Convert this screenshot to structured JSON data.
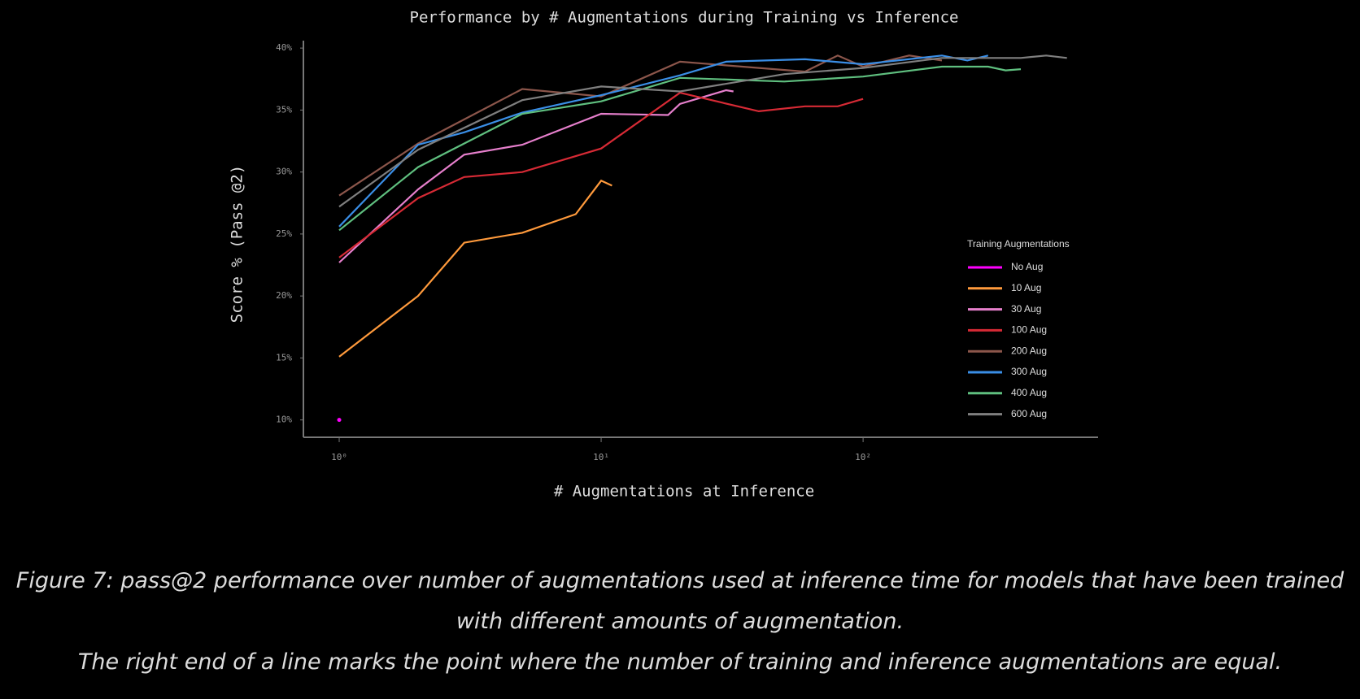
{
  "chart_data": {
    "type": "line",
    "title": "Performance by # Augmentations during Training vs Inference",
    "xlabel": "# Augmentations at Inference",
    "ylabel": "Score % (Pass @2)",
    "xscale": "log",
    "xlim": [
      0.73,
      789
    ],
    "ylim": [
      8.6,
      40.6
    ],
    "xticks": [
      {
        "value": 1,
        "label": "10⁰"
      },
      {
        "value": 10,
        "label": "10¹"
      },
      {
        "value": 100,
        "label": "10²"
      }
    ],
    "yticks": [
      {
        "value": 10,
        "label": "10%"
      },
      {
        "value": 15,
        "label": "15%"
      },
      {
        "value": 20,
        "label": "20%"
      },
      {
        "value": 25,
        "label": "25%"
      },
      {
        "value": 30,
        "label": "30%"
      },
      {
        "value": 35,
        "label": "35%"
      },
      {
        "value": 40,
        "label": "40%"
      }
    ],
    "legend_title": "Training Augmentations",
    "legend": "center right",
    "series": [
      {
        "name": "No Aug",
        "color": "#ff00ff",
        "x": [
          1
        ],
        "values": [
          10.0
        ]
      },
      {
        "name": "10 Aug",
        "color": "#ff9a3c",
        "x": [
          1,
          2,
          3,
          5,
          8,
          10,
          11
        ],
        "values": [
          15.1,
          20.0,
          24.3,
          25.1,
          26.6,
          29.3,
          28.9
        ]
      },
      {
        "name": "30 Aug",
        "color": "#e67fcc",
        "x": [
          1,
          2,
          3,
          5,
          10,
          18,
          20,
          30,
          32
        ],
        "values": [
          22.7,
          28.6,
          31.4,
          32.2,
          34.7,
          34.6,
          35.5,
          36.6,
          36.5
        ]
      },
      {
        "name": "100 Aug",
        "color": "#d62a35",
        "x": [
          1,
          2,
          3,
          5,
          10,
          20,
          40,
          60,
          80,
          100
        ],
        "values": [
          23.1,
          27.9,
          29.6,
          30.0,
          31.9,
          36.4,
          34.9,
          35.3,
          35.3,
          35.9
        ]
      },
      {
        "name": "200 Aug",
        "color": "#8c564b",
        "x": [
          1,
          2,
          5,
          10,
          20,
          60,
          80,
          100,
          150,
          200
        ],
        "values": [
          28.1,
          32.3,
          36.7,
          36.1,
          38.9,
          38.1,
          39.4,
          38.5,
          39.4,
          39.0
        ]
      },
      {
        "name": "300 Aug",
        "color": "#3a8ee6",
        "x": [
          1,
          2,
          3,
          5,
          10,
          20,
          30,
          60,
          100,
          200,
          250,
          300
        ],
        "values": [
          25.6,
          32.2,
          33.2,
          34.8,
          36.2,
          37.8,
          38.9,
          39.1,
          38.7,
          39.4,
          39.0,
          39.4
        ]
      },
      {
        "name": "400 Aug",
        "color": "#5fbf7f",
        "x": [
          1,
          2,
          5,
          10,
          20,
          50,
          100,
          200,
          300,
          350,
          400
        ],
        "values": [
          25.3,
          30.4,
          34.7,
          35.7,
          37.6,
          37.3,
          37.7,
          38.5,
          38.5,
          38.2,
          38.3
        ]
      },
      {
        "name": "600 Aug",
        "color": "#7f7f7f",
        "x": [
          1,
          2,
          5,
          10,
          20,
          50,
          100,
          200,
          300,
          400,
          500,
          600
        ],
        "values": [
          27.2,
          31.8,
          35.8,
          36.9,
          36.5,
          37.9,
          38.4,
          39.2,
          39.2,
          39.2,
          39.4,
          39.2
        ]
      }
    ]
  },
  "caption": [
    "Figure 7: pass@2 performance over number of augmentations used at inference time for models that have been trained with different amounts of augmentation.",
    "The right end of a line marks the point where the number of training and inference augmentations are equal."
  ]
}
